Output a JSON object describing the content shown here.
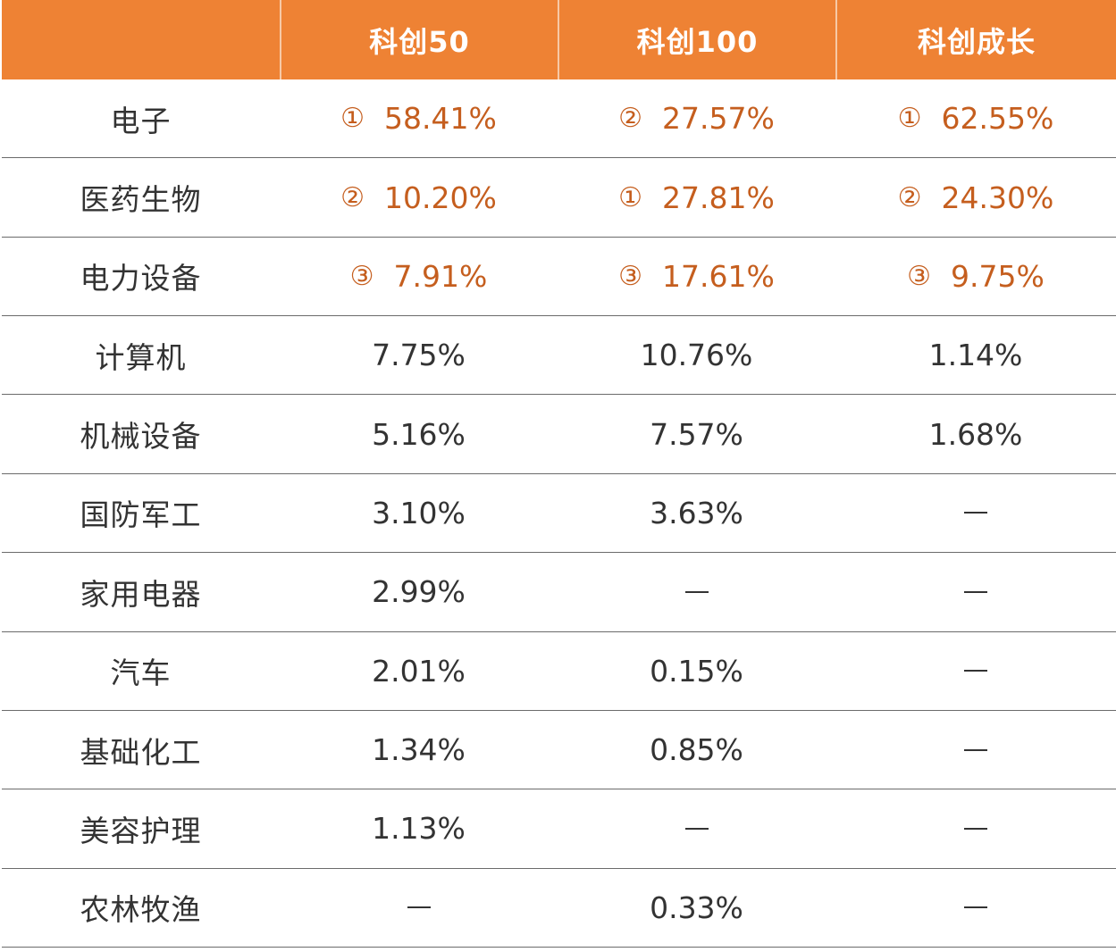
{
  "table": {
    "headers": [
      "",
      "科创50",
      "科创100",
      "科创成长"
    ],
    "rows": [
      {
        "label": "电子",
        "cells": [
          {
            "rank": "①",
            "value": "58.41%",
            "hl": true
          },
          {
            "rank": "②",
            "value": "27.57%",
            "hl": true
          },
          {
            "rank": "①",
            "value": "62.55%",
            "hl": true
          }
        ]
      },
      {
        "label": "医药生物",
        "cells": [
          {
            "rank": "②",
            "value": "10.20%",
            "hl": true
          },
          {
            "rank": "①",
            "value": "27.81%",
            "hl": true
          },
          {
            "rank": "②",
            "value": "24.30%",
            "hl": true
          }
        ]
      },
      {
        "label": "电力设备",
        "cells": [
          {
            "rank": "③",
            "value": "7.91%",
            "hl": true
          },
          {
            "rank": "③",
            "value": "17.61%",
            "hl": true
          },
          {
            "rank": "③",
            "value": "9.75%",
            "hl": true
          }
        ]
      },
      {
        "label": "计算机",
        "cells": [
          {
            "value": "7.75%"
          },
          {
            "value": "10.76%"
          },
          {
            "value": "1.14%"
          }
        ]
      },
      {
        "label": "机械设备",
        "cells": [
          {
            "value": "5.16%"
          },
          {
            "value": "7.57%"
          },
          {
            "value": "1.68%"
          }
        ]
      },
      {
        "label": "国防军工",
        "cells": [
          {
            "value": "3.10%"
          },
          {
            "value": "3.63%"
          },
          {
            "value": "—"
          }
        ]
      },
      {
        "label": "家用电器",
        "cells": [
          {
            "value": "2.99%"
          },
          {
            "value": "—"
          },
          {
            "value": "—"
          }
        ]
      },
      {
        "label": "汽车",
        "cells": [
          {
            "value": "2.01%"
          },
          {
            "value": "0.15%"
          },
          {
            "value": "—"
          }
        ]
      },
      {
        "label": "基础化工",
        "cells": [
          {
            "value": "1.34%"
          },
          {
            "value": "0.85%"
          },
          {
            "value": "—"
          }
        ]
      },
      {
        "label": "美容护理",
        "cells": [
          {
            "value": "1.13%"
          },
          {
            "value": "—"
          },
          {
            "value": "—"
          }
        ]
      },
      {
        "label": "农林牧渔",
        "cells": [
          {
            "value": "—"
          },
          {
            "value": "0.33%"
          },
          {
            "value": "—"
          }
        ]
      }
    ]
  },
  "colors": {
    "header_bg": "#ee8234",
    "header_text": "#ffffff",
    "highlight_text": "#c55e1e",
    "body_text": "#333333",
    "row_divider": "#6b6b6b"
  }
}
